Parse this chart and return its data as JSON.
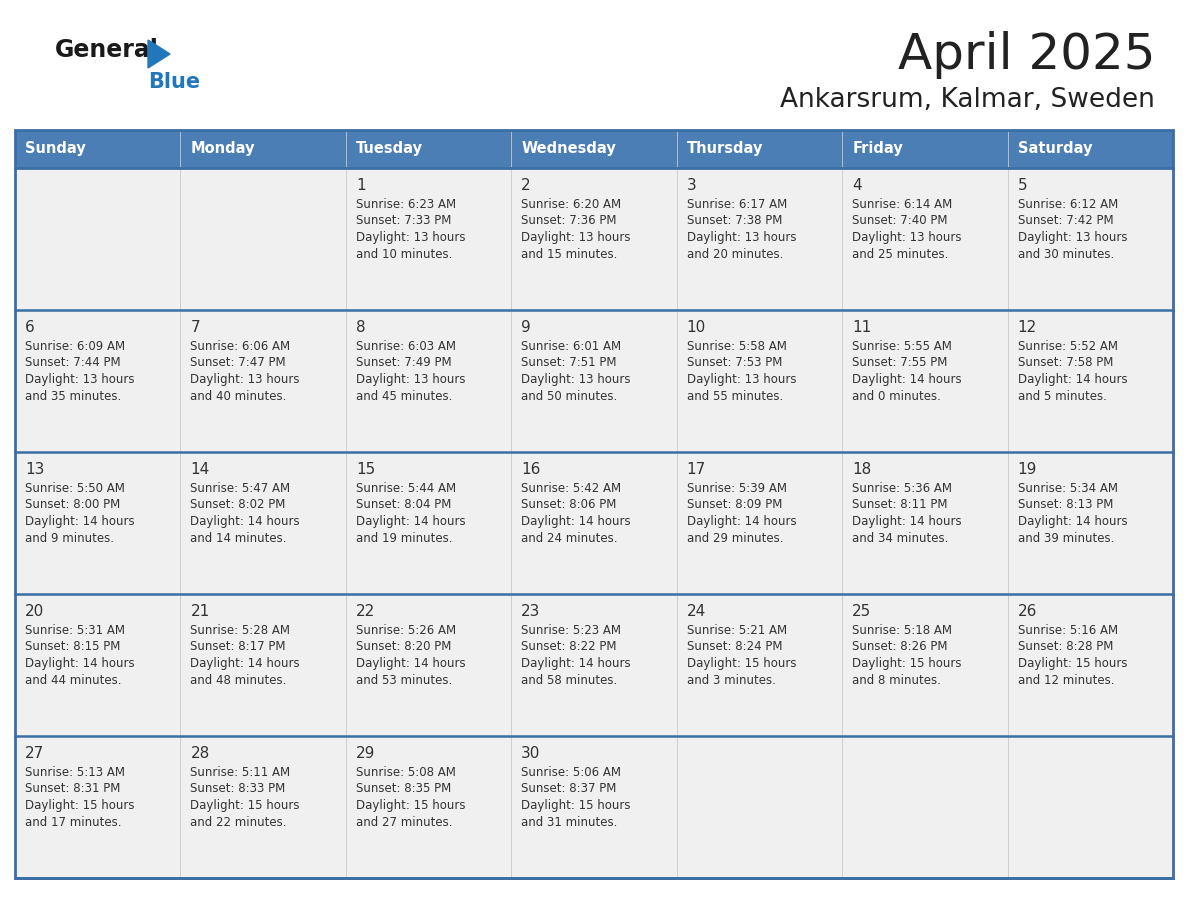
{
  "title": "April 2025",
  "subtitle": "Ankarsrum, Kalmar, Sweden",
  "header_bg": "#4a7eb5",
  "header_text": "#ffffff",
  "row_bg": "#f0f0f0",
  "cell_border_color": "#3a6ea5",
  "day_names": [
    "Sunday",
    "Monday",
    "Tuesday",
    "Wednesday",
    "Thursday",
    "Friday",
    "Saturday"
  ],
  "title_color": "#222222",
  "subtitle_color": "#222222",
  "logo_general_color": "#1a1a1a",
  "logo_blue_color": "#2277bb",
  "cell_text_color": "#333333",
  "day_number_color": "#333333",
  "weeks": [
    [
      {
        "day": "",
        "sunrise": "",
        "sunset": "",
        "daylight_h": "",
        "daylight_m": ""
      },
      {
        "day": "",
        "sunrise": "",
        "sunset": "",
        "daylight_h": "",
        "daylight_m": ""
      },
      {
        "day": "1",
        "sunrise": "6:23 AM",
        "sunset": "7:33 PM",
        "daylight_h": "13 hours",
        "daylight_m": "and 10 minutes."
      },
      {
        "day": "2",
        "sunrise": "6:20 AM",
        "sunset": "7:36 PM",
        "daylight_h": "13 hours",
        "daylight_m": "and 15 minutes."
      },
      {
        "day": "3",
        "sunrise": "6:17 AM",
        "sunset": "7:38 PM",
        "daylight_h": "13 hours",
        "daylight_m": "and 20 minutes."
      },
      {
        "day": "4",
        "sunrise": "6:14 AM",
        "sunset": "7:40 PM",
        "daylight_h": "13 hours",
        "daylight_m": "and 25 minutes."
      },
      {
        "day": "5",
        "sunrise": "6:12 AM",
        "sunset": "7:42 PM",
        "daylight_h": "13 hours",
        "daylight_m": "and 30 minutes."
      }
    ],
    [
      {
        "day": "6",
        "sunrise": "6:09 AM",
        "sunset": "7:44 PM",
        "daylight_h": "13 hours",
        "daylight_m": "and 35 minutes."
      },
      {
        "day": "7",
        "sunrise": "6:06 AM",
        "sunset": "7:47 PM",
        "daylight_h": "13 hours",
        "daylight_m": "and 40 minutes."
      },
      {
        "day": "8",
        "sunrise": "6:03 AM",
        "sunset": "7:49 PM",
        "daylight_h": "13 hours",
        "daylight_m": "and 45 minutes."
      },
      {
        "day": "9",
        "sunrise": "6:01 AM",
        "sunset": "7:51 PM",
        "daylight_h": "13 hours",
        "daylight_m": "and 50 minutes."
      },
      {
        "day": "10",
        "sunrise": "5:58 AM",
        "sunset": "7:53 PM",
        "daylight_h": "13 hours",
        "daylight_m": "and 55 minutes."
      },
      {
        "day": "11",
        "sunrise": "5:55 AM",
        "sunset": "7:55 PM",
        "daylight_h": "14 hours",
        "daylight_m": "and 0 minutes."
      },
      {
        "day": "12",
        "sunrise": "5:52 AM",
        "sunset": "7:58 PM",
        "daylight_h": "14 hours",
        "daylight_m": "and 5 minutes."
      }
    ],
    [
      {
        "day": "13",
        "sunrise": "5:50 AM",
        "sunset": "8:00 PM",
        "daylight_h": "14 hours",
        "daylight_m": "and 9 minutes."
      },
      {
        "day": "14",
        "sunrise": "5:47 AM",
        "sunset": "8:02 PM",
        "daylight_h": "14 hours",
        "daylight_m": "and 14 minutes."
      },
      {
        "day": "15",
        "sunrise": "5:44 AM",
        "sunset": "8:04 PM",
        "daylight_h": "14 hours",
        "daylight_m": "and 19 minutes."
      },
      {
        "day": "16",
        "sunrise": "5:42 AM",
        "sunset": "8:06 PM",
        "daylight_h": "14 hours",
        "daylight_m": "and 24 minutes."
      },
      {
        "day": "17",
        "sunrise": "5:39 AM",
        "sunset": "8:09 PM",
        "daylight_h": "14 hours",
        "daylight_m": "and 29 minutes."
      },
      {
        "day": "18",
        "sunrise": "5:36 AM",
        "sunset": "8:11 PM",
        "daylight_h": "14 hours",
        "daylight_m": "and 34 minutes."
      },
      {
        "day": "19",
        "sunrise": "5:34 AM",
        "sunset": "8:13 PM",
        "daylight_h": "14 hours",
        "daylight_m": "and 39 minutes."
      }
    ],
    [
      {
        "day": "20",
        "sunrise": "5:31 AM",
        "sunset": "8:15 PM",
        "daylight_h": "14 hours",
        "daylight_m": "and 44 minutes."
      },
      {
        "day": "21",
        "sunrise": "5:28 AM",
        "sunset": "8:17 PM",
        "daylight_h": "14 hours",
        "daylight_m": "and 48 minutes."
      },
      {
        "day": "22",
        "sunrise": "5:26 AM",
        "sunset": "8:20 PM",
        "daylight_h": "14 hours",
        "daylight_m": "and 53 minutes."
      },
      {
        "day": "23",
        "sunrise": "5:23 AM",
        "sunset": "8:22 PM",
        "daylight_h": "14 hours",
        "daylight_m": "and 58 minutes."
      },
      {
        "day": "24",
        "sunrise": "5:21 AM",
        "sunset": "8:24 PM",
        "daylight_h": "15 hours",
        "daylight_m": "and 3 minutes."
      },
      {
        "day": "25",
        "sunrise": "5:18 AM",
        "sunset": "8:26 PM",
        "daylight_h": "15 hours",
        "daylight_m": "and 8 minutes."
      },
      {
        "day": "26",
        "sunrise": "5:16 AM",
        "sunset": "8:28 PM",
        "daylight_h": "15 hours",
        "daylight_m": "and 12 minutes."
      }
    ],
    [
      {
        "day": "27",
        "sunrise": "5:13 AM",
        "sunset": "8:31 PM",
        "daylight_h": "15 hours",
        "daylight_m": "and 17 minutes."
      },
      {
        "day": "28",
        "sunrise": "5:11 AM",
        "sunset": "8:33 PM",
        "daylight_h": "15 hours",
        "daylight_m": "and 22 minutes."
      },
      {
        "day": "29",
        "sunrise": "5:08 AM",
        "sunset": "8:35 PM",
        "daylight_h": "15 hours",
        "daylight_m": "and 27 minutes."
      },
      {
        "day": "30",
        "sunrise": "5:06 AM",
        "sunset": "8:37 PM",
        "daylight_h": "15 hours",
        "daylight_m": "and 31 minutes."
      },
      {
        "day": "",
        "sunrise": "",
        "sunset": "",
        "daylight_h": "",
        "daylight_m": ""
      },
      {
        "day": "",
        "sunrise": "",
        "sunset": "",
        "daylight_h": "",
        "daylight_m": ""
      },
      {
        "day": "",
        "sunrise": "",
        "sunset": "",
        "daylight_h": "",
        "daylight_m": ""
      }
    ]
  ]
}
